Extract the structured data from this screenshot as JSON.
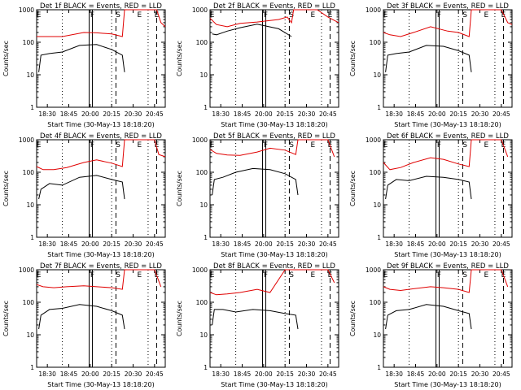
{
  "colors": {
    "events": "#000000",
    "lld": "#e00000",
    "axis": "#000000"
  },
  "panels": [
    {
      "title": "Det 1f BLACK = Events, RED = LLD",
      "xlabel": "Start Time (30-May-13 18:18:20)",
      "ylabel": "Counts/sec"
    },
    {
      "title": "Det 2f BLACK = Events, RED = LLD",
      "xlabel": "Start Time (30-May-13 18:18:20)",
      "ylabel": "Counts/sec"
    },
    {
      "title": "Det 3f BLACK = Events, RED = LLD",
      "xlabel": "Start Time (30-May-13 18:18:20)",
      "ylabel": "Counts/sec"
    },
    {
      "title": "Det 4f BLACK = Events, RED = LLD",
      "xlabel": "Start Time (30-May-13 18:18:20)",
      "ylabel": "Counts/sec"
    },
    {
      "title": "Det 5f BLACK = Events, RED = LLD",
      "xlabel": "Start Time (30-May-13 18:18:20)",
      "ylabel": "Counts/sec"
    },
    {
      "title": "Det 6f BLACK = Events, RED = LLD",
      "xlabel": "Start Time (30-May-13 18:18:20)",
      "ylabel": "Counts/sec"
    },
    {
      "title": "Det 7f BLACK = Events, RED = LLD",
      "xlabel": "Start Time (30-May-13 18:18:20)",
      "ylabel": "Counts/sec"
    },
    {
      "title": "Det 8f BLACK = Events, RED = LLD",
      "xlabel": "Start Time (30-May-13 18:18:20)",
      "ylabel": "Counts/sec"
    },
    {
      "title": "Det 9f BLACK = Events, RED = LLD",
      "xlabel": "Start Time (30-May-13 18:18:20)",
      "ylabel": "Counts/sec"
    }
  ],
  "chart_data": {
    "type": "line",
    "layout": "3x3 grid",
    "x_ticks": [
      "18:30",
      "18:45",
      "20:00",
      "20:15",
      "20:30",
      "20:45"
    ],
    "y_ticks": [
      "1",
      "10",
      "100",
      "1000"
    ],
    "ylim": [
      1,
      1000
    ],
    "yscale": "log",
    "xlim": [
      "18:18",
      "20:57"
    ],
    "markers": {
      "E": "E",
      "F": "F",
      "S": "S"
    },
    "series_names": [
      "Events",
      "LLD"
    ],
    "panels": [
      {
        "lld": [
          [
            0,
            150
          ],
          [
            3,
            150
          ],
          [
            12,
            150
          ],
          [
            22,
            200
          ],
          [
            28,
            195
          ],
          [
            35,
            180
          ],
          [
            40,
            150
          ],
          [
            41,
            1000
          ],
          [
            55,
            1000
          ],
          [
            56,
            1000
          ],
          [
            58,
            400
          ],
          [
            60,
            300
          ]
        ],
        "events": [
          [
            1,
            12
          ],
          [
            2,
            40
          ],
          [
            6,
            45
          ],
          [
            12,
            50
          ],
          [
            20,
            80
          ],
          [
            28,
            85
          ],
          [
            35,
            60
          ],
          [
            40,
            40
          ],
          [
            41,
            12
          ]
        ]
      },
      {
        "lld": [
          [
            0,
            550
          ],
          [
            3,
            350
          ],
          [
            8,
            300
          ],
          [
            14,
            380
          ],
          [
            22,
            420
          ],
          [
            32,
            500
          ],
          [
            36,
            600
          ],
          [
            38,
            400
          ],
          [
            39,
            1000
          ],
          [
            50,
            1000
          ],
          [
            55,
            600
          ],
          [
            60,
            400
          ]
        ],
        "events": [
          [
            1,
            180
          ],
          [
            3,
            170
          ],
          [
            8,
            220
          ],
          [
            14,
            280
          ],
          [
            22,
            360
          ],
          [
            32,
            260
          ],
          [
            38,
            150
          ]
        ]
      },
      {
        "lld": [
          [
            0,
            200
          ],
          [
            3,
            170
          ],
          [
            8,
            150
          ],
          [
            14,
            200
          ],
          [
            22,
            300
          ],
          [
            30,
            220
          ],
          [
            35,
            200
          ],
          [
            40,
            150
          ],
          [
            41,
            1000
          ],
          [
            55,
            1000
          ],
          [
            58,
            400
          ],
          [
            60,
            350
          ]
        ],
        "events": [
          [
            1,
            12
          ],
          [
            2,
            40
          ],
          [
            6,
            45
          ],
          [
            12,
            50
          ],
          [
            20,
            80
          ],
          [
            28,
            75
          ],
          [
            35,
            55
          ],
          [
            40,
            40
          ],
          [
            41,
            12
          ]
        ]
      },
      {
        "lld": [
          [
            0,
            150
          ],
          [
            3,
            120
          ],
          [
            8,
            120
          ],
          [
            14,
            140
          ],
          [
            22,
            200
          ],
          [
            28,
            240
          ],
          [
            35,
            190
          ],
          [
            40,
            150
          ],
          [
            41,
            1000
          ],
          [
            55,
            1000
          ],
          [
            57,
            350
          ],
          [
            60,
            300
          ]
        ],
        "events": [
          [
            1,
            15
          ],
          [
            2,
            30
          ],
          [
            6,
            45
          ],
          [
            12,
            40
          ],
          [
            20,
            70
          ],
          [
            28,
            80
          ],
          [
            35,
            60
          ],
          [
            40,
            50
          ],
          [
            41,
            15
          ]
        ]
      },
      {
        "lld": [
          [
            0,
            500
          ],
          [
            3,
            380
          ],
          [
            8,
            340
          ],
          [
            14,
            330
          ],
          [
            22,
            420
          ],
          [
            28,
            550
          ],
          [
            35,
            480
          ],
          [
            40,
            350
          ],
          [
            41,
            1000
          ],
          [
            55,
            1000
          ],
          [
            58,
            300
          ]
        ],
        "events": [
          [
            1,
            20
          ],
          [
            2,
            60
          ],
          [
            6,
            70
          ],
          [
            12,
            100
          ],
          [
            20,
            130
          ],
          [
            28,
            120
          ],
          [
            35,
            90
          ],
          [
            40,
            60
          ],
          [
            41,
            20
          ]
        ]
      },
      {
        "lld": [
          [
            0,
            200
          ],
          [
            3,
            120
          ],
          [
            8,
            140
          ],
          [
            14,
            200
          ],
          [
            22,
            280
          ],
          [
            28,
            250
          ],
          [
            35,
            180
          ],
          [
            40,
            150
          ],
          [
            41,
            1000
          ],
          [
            55,
            1000
          ],
          [
            58,
            300
          ]
        ],
        "events": [
          [
            1,
            15
          ],
          [
            2,
            40
          ],
          [
            6,
            60
          ],
          [
            12,
            55
          ],
          [
            20,
            75
          ],
          [
            28,
            70
          ],
          [
            35,
            60
          ],
          [
            40,
            50
          ],
          [
            41,
            15
          ]
        ]
      },
      {
        "lld": [
          [
            0,
            350
          ],
          [
            3,
            300
          ],
          [
            8,
            280
          ],
          [
            14,
            300
          ],
          [
            22,
            320
          ],
          [
            28,
            300
          ],
          [
            35,
            280
          ],
          [
            40,
            250
          ],
          [
            41,
            1000
          ],
          [
            55,
            1000
          ],
          [
            58,
            300
          ]
        ],
        "events": [
          [
            1,
            15
          ],
          [
            2,
            40
          ],
          [
            6,
            60
          ],
          [
            12,
            65
          ],
          [
            20,
            85
          ],
          [
            28,
            75
          ],
          [
            35,
            55
          ],
          [
            40,
            40
          ],
          [
            41,
            15
          ]
        ]
      },
      {
        "lld": [
          [
            0,
            200
          ],
          [
            3,
            170
          ],
          [
            8,
            180
          ],
          [
            14,
            200
          ],
          [
            22,
            250
          ],
          [
            28,
            200
          ],
          [
            35,
            1000
          ],
          [
            36,
            1000
          ],
          [
            40,
            1000
          ],
          [
            41,
            1000
          ],
          [
            55,
            1000
          ],
          [
            58,
            400
          ]
        ],
        "events": [
          [
            1,
            20
          ],
          [
            2,
            60
          ],
          [
            6,
            60
          ],
          [
            12,
            50
          ],
          [
            20,
            60
          ],
          [
            28,
            55
          ],
          [
            35,
            45
          ],
          [
            40,
            40
          ],
          [
            41,
            15
          ]
        ]
      },
      {
        "lld": [
          [
            0,
            300
          ],
          [
            3,
            250
          ],
          [
            8,
            230
          ],
          [
            14,
            260
          ],
          [
            22,
            300
          ],
          [
            28,
            280
          ],
          [
            35,
            250
          ],
          [
            40,
            200
          ],
          [
            41,
            1000
          ],
          [
            55,
            1000
          ],
          [
            58,
            300
          ]
        ],
        "events": [
          [
            1,
            15
          ],
          [
            2,
            40
          ],
          [
            6,
            55
          ],
          [
            12,
            60
          ],
          [
            20,
            85
          ],
          [
            28,
            75
          ],
          [
            35,
            55
          ],
          [
            40,
            45
          ],
          [
            41,
            15
          ]
        ]
      }
    ]
  }
}
